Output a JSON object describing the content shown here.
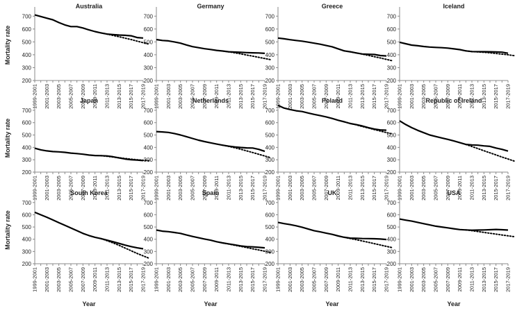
{
  "chart_data": {
    "type": "line",
    "layout": "3x4 small multiples",
    "ylabel": "Mortality rate",
    "xlabel": "Year",
    "ylim": [
      200,
      750
    ],
    "yticks": [
      200,
      300,
      400,
      500,
      600,
      700
    ],
    "x": [
      "1999-2001",
      "2000-2002",
      "2001-2003",
      "2002-2004",
      "2003-2005",
      "2004-2006",
      "2005-2007",
      "2006-2008",
      "2007-2009",
      "2008-2010",
      "2009-2011",
      "2010-2012",
      "2011-2013",
      "2012-2014",
      "2013-2015",
      "2014-2016",
      "2015-2017",
      "2016-2018",
      "2017-2019"
    ],
    "xtick_labels": [
      "1999-2001",
      "2001-2003",
      "2003-2005",
      "2005-2007",
      "2007-2009",
      "2009-2011",
      "2011-2013",
      "2013-2015",
      "2015-2017",
      "2017-2019"
    ],
    "series_styles": {
      "observed": "solid",
      "projected": "dotted"
    },
    "panels": [
      {
        "title": "Australia",
        "observed": [
          710,
          697,
          684,
          672,
          650,
          632,
          619,
          619,
          608,
          593,
          580,
          570,
          561,
          557,
          553,
          551,
          547,
          534,
          530
        ],
        "projected": {
          "start_index": 11,
          "values": [
            570,
            561,
            550,
            540,
            529,
            518,
            506,
            494,
            482
          ]
        }
      },
      {
        "title": "Germany",
        "observed": [
          518,
          511,
          508,
          500,
          490,
          476,
          463,
          455,
          447,
          441,
          434,
          429,
          423,
          421,
          419,
          417,
          415,
          414,
          411
        ],
        "projected": {
          "start_index": 11,
          "values": [
            429,
            423,
            415,
            407,
            398,
            389,
            380,
            371,
            362
          ]
        }
      },
      {
        "title": "Greece",
        "observed": [
          530,
          524,
          517,
          511,
          506,
          498,
          490,
          482,
          472,
          462,
          446,
          430,
          423,
          414,
          406,
          404,
          402,
          394,
          391
        ],
        "projected": {
          "start_index": 11,
          "values": [
            430,
            423,
            414,
            405,
            395,
            385,
            375,
            364,
            353
          ]
        }
      },
      {
        "title": "Iceland",
        "observed": [
          497,
          486,
          475,
          470,
          464,
          460,
          457,
          455,
          452,
          446,
          440,
          430,
          425,
          424,
          424,
          423,
          422,
          420,
          412
        ],
        "projected": {
          "start_index": 11,
          "values": [
            430,
            425,
            422,
            419,
            415,
            410,
            405,
            400,
            393
          ]
        }
      },
      {
        "title": "Japan",
        "observed": [
          393,
          380,
          372,
          366,
          364,
          360,
          354,
          350,
          345,
          338,
          334,
          333,
          331,
          324,
          315,
          306,
          300,
          297,
          293
        ],
        "projected": {
          "start_index": 11,
          "values": [
            333,
            328,
            322,
            316,
            310,
            305,
            300,
            296,
            292
          ]
        }
      },
      {
        "title": "Netherlands",
        "observed": [
          528,
          525,
          521,
          512,
          500,
          487,
          472,
          458,
          447,
          437,
          427,
          418,
          410,
          404,
          399,
          396,
          395,
          384,
          368
        ],
        "projected": {
          "start_index": 11,
          "values": [
            418,
            408,
            397,
            385,
            372,
            358,
            344,
            330,
            316
          ]
        }
      },
      {
        "title": "Poland",
        "observed": [
          740,
          718,
          706,
          696,
          690,
          678,
          667,
          657,
          647,
          634,
          619,
          607,
          593,
          584,
          573,
          560,
          548,
          541,
          539
        ],
        "projected": {
          "start_index": 11,
          "values": [
            607,
            594,
            582,
            569,
            557,
            544,
            532,
            520,
            508
          ]
        }
      },
      {
        "title": "Republic of Ireland",
        "observed": [
          615,
          585,
          560,
          538,
          519,
          500,
          488,
          476,
          465,
          452,
          438,
          424,
          420,
          418,
          412,
          408,
          395,
          384,
          370
        ],
        "projected": {
          "start_index": 11,
          "values": [
            424,
            407,
            390,
            373,
            356,
            339,
            322,
            306,
            290
          ]
        }
      },
      {
        "title": "South Korea",
        "observed": [
          620,
          600,
          580,
          558,
          535,
          514,
          492,
          470,
          448,
          430,
          416,
          405,
          392,
          380,
          366,
          352,
          340,
          330,
          322
        ],
        "projected": {
          "start_index": 11,
          "values": [
            405,
            388,
            370,
            350,
            328,
            306,
            284,
            264,
            244
          ]
        }
      },
      {
        "title": "Spain",
        "observed": [
          475,
          466,
          462,
          455,
          448,
          435,
          423,
          412,
          402,
          392,
          380,
          370,
          362,
          354,
          346,
          340,
          338,
          334,
          330
        ],
        "projected": {
          "start_index": 11,
          "values": [
            370,
            361,
            351,
            342,
            332,
            322,
            312,
            302,
            292
          ]
        }
      },
      {
        "title": "UK",
        "observed": [
          538,
          528,
          520,
          510,
          498,
          484,
          470,
          460,
          450,
          440,
          427,
          416,
          409,
          408,
          406,
          405,
          404,
          402,
          398
        ],
        "projected": {
          "start_index": 11,
          "values": [
            416,
            406,
            396,
            386,
            375,
            364,
            353,
            342,
            331
          ]
        }
      },
      {
        "title": "USA",
        "observed": [
          565,
          556,
          548,
          538,
          527,
          517,
          507,
          500,
          493,
          486,
          479,
          476,
          474,
          475,
          476,
          478,
          480,
          478,
          475
        ],
        "projected": {
          "start_index": 11,
          "values": [
            476,
            470,
            463,
            456,
            449,
            442,
            435,
            428,
            421
          ]
        }
      }
    ]
  }
}
